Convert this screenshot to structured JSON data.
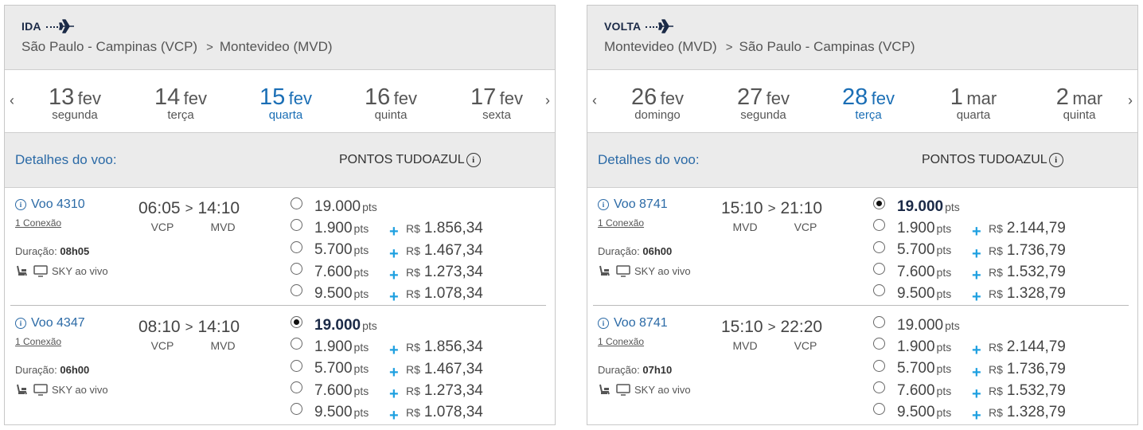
{
  "panels": [
    {
      "direction": "IDA",
      "origin": "São Paulo - Campinas (VCP)",
      "destination": "Montevideo (MVD)",
      "dates": [
        {
          "day": "13",
          "month": "fev",
          "weekday": "segunda"
        },
        {
          "day": "14",
          "month": "fev",
          "weekday": "terça"
        },
        {
          "day": "15",
          "month": "fev",
          "weekday": "quarta"
        },
        {
          "day": "16",
          "month": "fev",
          "weekday": "quinta"
        },
        {
          "day": "17",
          "month": "fev",
          "weekday": "sexta"
        }
      ],
      "selected_date_index": 2,
      "details_label": "Detalhes do voo:",
      "points_label": "PONTOS TUDOAZUL",
      "flights": [
        {
          "number": "Voo 4310",
          "connection": "1 Conexão",
          "duration_label": "Duração:",
          "duration": "08h05",
          "amenity": "SKY ao vivo",
          "depart": "06:05",
          "arrive": "14:10",
          "from": "VCP",
          "to": "MVD",
          "fares": [
            {
              "points": "19.000",
              "unit": "pts",
              "currency": "",
              "money": "",
              "selected": false
            },
            {
              "points": "1.900",
              "unit": "pts",
              "currency": "R$",
              "money": "1.856,34",
              "selected": false
            },
            {
              "points": "5.700",
              "unit": "pts",
              "currency": "R$",
              "money": "1.467,34",
              "selected": false
            },
            {
              "points": "7.600",
              "unit": "pts",
              "currency": "R$",
              "money": "1.273,34",
              "selected": false
            },
            {
              "points": "9.500",
              "unit": "pts",
              "currency": "R$",
              "money": "1.078,34",
              "selected": false
            }
          ]
        },
        {
          "number": "Voo 4347",
          "connection": "1 Conexão",
          "duration_label": "Duração:",
          "duration": "06h00",
          "amenity": "SKY ao vivo",
          "depart": "08:10",
          "arrive": "14:10",
          "from": "VCP",
          "to": "MVD",
          "fares": [
            {
              "points": "19.000",
              "unit": "pts",
              "currency": "",
              "money": "",
              "selected": true
            },
            {
              "points": "1.900",
              "unit": "pts",
              "currency": "R$",
              "money": "1.856,34",
              "selected": false
            },
            {
              "points": "5.700",
              "unit": "pts",
              "currency": "R$",
              "money": "1.467,34",
              "selected": false
            },
            {
              "points": "7.600",
              "unit": "pts",
              "currency": "R$",
              "money": "1.273,34",
              "selected": false
            },
            {
              "points": "9.500",
              "unit": "pts",
              "currency": "R$",
              "money": "1.078,34",
              "selected": false
            }
          ]
        }
      ]
    },
    {
      "direction": "VOLTA",
      "origin": "Montevideo (MVD)",
      "destination": "São Paulo - Campinas (VCP)",
      "dates": [
        {
          "day": "26",
          "month": "fev",
          "weekday": "domingo"
        },
        {
          "day": "27",
          "month": "fev",
          "weekday": "segunda"
        },
        {
          "day": "28",
          "month": "fev",
          "weekday": "terça"
        },
        {
          "day": "1",
          "month": "mar",
          "weekday": "quarta"
        },
        {
          "day": "2",
          "month": "mar",
          "weekday": "quinta"
        }
      ],
      "selected_date_index": 2,
      "details_label": "Detalhes do voo:",
      "points_label": "PONTOS TUDOAZUL",
      "flights": [
        {
          "number": "Voo 8741",
          "connection": "1 Conexão",
          "duration_label": "Duração:",
          "duration": "06h00",
          "amenity": "SKY ao vivo",
          "depart": "15:10",
          "arrive": "21:10",
          "from": "MVD",
          "to": "VCP",
          "fares": [
            {
              "points": "19.000",
              "unit": "pts",
              "currency": "",
              "money": "",
              "selected": true
            },
            {
              "points": "1.900",
              "unit": "pts",
              "currency": "R$",
              "money": "2.144,79",
              "selected": false
            },
            {
              "points": "5.700",
              "unit": "pts",
              "currency": "R$",
              "money": "1.736,79",
              "selected": false
            },
            {
              "points": "7.600",
              "unit": "pts",
              "currency": "R$",
              "money": "1.532,79",
              "selected": false
            },
            {
              "points": "9.500",
              "unit": "pts",
              "currency": "R$",
              "money": "1.328,79",
              "selected": false
            }
          ]
        },
        {
          "number": "Voo 8741",
          "connection": "1 Conexão",
          "duration_label": "Duração:",
          "duration": "07h10",
          "amenity": "SKY ao vivo",
          "depart": "15:10",
          "arrive": "22:20",
          "from": "MVD",
          "to": "VCP",
          "fares": [
            {
              "points": "19.000",
              "unit": "pts",
              "currency": "",
              "money": "",
              "selected": false
            },
            {
              "points": "1.900",
              "unit": "pts",
              "currency": "R$",
              "money": "2.144,79",
              "selected": false
            },
            {
              "points": "5.700",
              "unit": "pts",
              "currency": "R$",
              "money": "1.736,79",
              "selected": false
            },
            {
              "points": "7.600",
              "unit": "pts",
              "currency": "R$",
              "money": "1.532,79",
              "selected": false
            },
            {
              "points": "9.500",
              "unit": "pts",
              "currency": "R$",
              "money": "1.328,79",
              "selected": false
            }
          ]
        }
      ]
    }
  ]
}
